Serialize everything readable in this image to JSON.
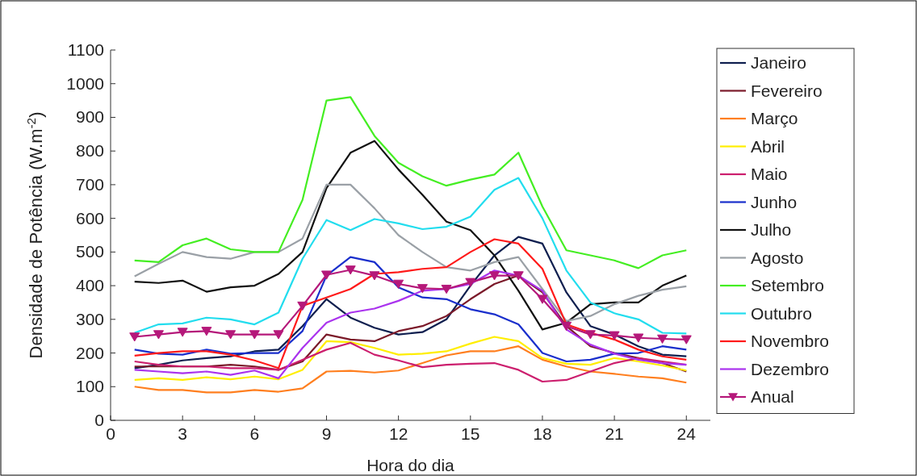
{
  "chart_data": {
    "type": "line",
    "xlabel": "Hora do dia",
    "ylabel": "Densidade de Potência (W.m$^{-2}$)",
    "x": [
      1,
      2,
      3,
      4,
      5,
      6,
      7,
      8,
      9,
      10,
      11,
      12,
      13,
      14,
      15,
      16,
      17,
      18,
      19,
      20,
      21,
      22,
      23,
      24
    ],
    "xlim": [
      0,
      25
    ],
    "xticks": [
      0,
      3,
      6,
      9,
      12,
      15,
      18,
      21,
      24
    ],
    "ylim": [
      0,
      1100
    ],
    "yticks": [
      0,
      100,
      200,
      300,
      400,
      500,
      600,
      700,
      800,
      900,
      1000,
      1100
    ],
    "grid": false,
    "legend": "right",
    "marker": "none",
    "line_style": "solid",
    "series": [
      {
        "name": "Janeiro",
        "color": "#0f1f4f",
        "values": [
          155,
          165,
          178,
          185,
          190,
          205,
          210,
          280,
          360,
          305,
          275,
          255,
          262,
          300,
          400,
          490,
          545,
          525,
          380,
          280,
          255,
          220,
          195,
          190
        ]
      },
      {
        "name": "Fevereiro",
        "color": "#7b1a2a",
        "values": [
          160,
          160,
          160,
          160,
          165,
          160,
          150,
          175,
          255,
          240,
          235,
          265,
          280,
          310,
          360,
          405,
          430,
          380,
          280,
          220,
          200,
          185,
          170,
          145
        ]
      },
      {
        "name": "Março",
        "color": "#ff7f1f",
        "values": [
          100,
          90,
          90,
          83,
          83,
          90,
          85,
          95,
          145,
          147,
          142,
          148,
          170,
          193,
          205,
          205,
          220,
          180,
          160,
          145,
          138,
          130,
          125,
          112
        ]
      },
      {
        "name": "Abril",
        "color": "#ffee00",
        "values": [
          120,
          125,
          120,
          128,
          122,
          130,
          122,
          150,
          235,
          232,
          215,
          195,
          198,
          205,
          228,
          248,
          235,
          185,
          168,
          165,
          185,
          175,
          163,
          148
        ]
      },
      {
        "name": "Maio",
        "color": "#cc1f6e",
        "values": [
          175,
          165,
          160,
          160,
          155,
          155,
          150,
          180,
          210,
          230,
          195,
          178,
          158,
          165,
          168,
          170,
          150,
          115,
          120,
          145,
          170,
          185,
          175,
          165
        ]
      },
      {
        "name": "Junho",
        "color": "#1a2fcc",
        "values": [
          210,
          198,
          195,
          210,
          198,
          200,
          200,
          265,
          430,
          485,
          470,
          395,
          365,
          360,
          330,
          315,
          285,
          200,
          175,
          180,
          198,
          200,
          220,
          210
        ]
      },
      {
        "name": "Julho",
        "color": "#111111",
        "values": [
          412,
          408,
          415,
          382,
          395,
          400,
          435,
          500,
          690,
          795,
          830,
          745,
          670,
          590,
          565,
          490,
          385,
          270,
          290,
          345,
          350,
          350,
          400,
          430
        ]
      },
      {
        "name": "Agosto",
        "color": "#9aa0a6",
        "values": [
          428,
          465,
          500,
          485,
          480,
          500,
          500,
          540,
          700,
          700,
          630,
          550,
          500,
          455,
          445,
          470,
          485,
          390,
          295,
          310,
          345,
          370,
          388,
          398
        ]
      },
      {
        "name": "Setembro",
        "color": "#44ee22",
        "values": [
          475,
          470,
          520,
          540,
          508,
          500,
          500,
          655,
          950,
          960,
          845,
          765,
          725,
          697,
          715,
          730,
          795,
          635,
          505,
          490,
          475,
          452,
          490,
          505
        ]
      },
      {
        "name": "Outubro",
        "color": "#22ddee",
        "values": [
          260,
          285,
          288,
          305,
          300,
          285,
          320,
          480,
          595,
          565,
          598,
          585,
          568,
          575,
          605,
          685,
          720,
          600,
          445,
          350,
          318,
          300,
          260,
          258
        ]
      },
      {
        "name": "Novembro",
        "color": "#ff1a1a",
        "values": [
          192,
          200,
          205,
          205,
          195,
          178,
          155,
          340,
          365,
          390,
          435,
          440,
          450,
          455,
          500,
          538,
          525,
          450,
          285,
          260,
          240,
          210,
          190,
          180
        ]
      },
      {
        "name": "Dezembro",
        "color": "#aa33ee",
        "values": [
          150,
          145,
          140,
          145,
          135,
          148,
          125,
          215,
          290,
          320,
          332,
          355,
          385,
          390,
          405,
          445,
          430,
          385,
          270,
          225,
          198,
          180,
          170,
          165
        ]
      },
      {
        "name": "Anual",
        "color": "#b5187a",
        "marker": "triangle",
        "values": [
          248,
          255,
          262,
          265,
          255,
          255,
          255,
          340,
          432,
          447,
          430,
          405,
          392,
          390,
          410,
          430,
          430,
          360,
          280,
          255,
          252,
          245,
          242,
          240
        ]
      }
    ]
  }
}
